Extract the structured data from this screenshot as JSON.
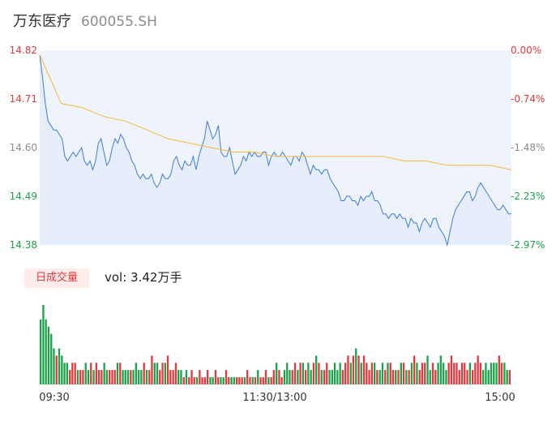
{
  "header": {
    "name": "万东医疗",
    "code": "600055.SH"
  },
  "volume_panel": {
    "tag_label": "日成交量",
    "vol_label": "vol: 3.42万手"
  },
  "colors": {
    "price_line": "#3e7bdb",
    "avg_line": "#f5b93e",
    "up": "#e4393c",
    "down": "#1aa34a",
    "neutral": "#8c8c8c",
    "area_fill": "#eef3fc"
  },
  "chart_data": [
    {
      "type": "line",
      "title": "",
      "x_ticks": [
        "09:30",
        "11:30/13:00",
        "15:00"
      ],
      "y_ticks_left": [
        "14.82",
        "14.71",
        "14.60",
        "14.49",
        "14.38"
      ],
      "y_ticks_right": [
        "0.00%",
        "-0.74%",
        "-1.48%",
        "-2.23%",
        "-2.97%"
      ],
      "ylim": [
        14.38,
        14.82
      ],
      "series": [
        {
          "values": [
            14.81,
            14.76,
            14.7,
            14.66,
            14.65,
            14.64,
            14.64,
            14.63,
            14.62,
            14.58,
            14.57,
            14.58,
            14.59,
            14.58,
            14.59,
            14.6,
            14.57,
            14.56,
            14.57,
            14.55,
            14.57,
            14.61,
            14.62,
            14.59,
            14.56,
            14.57,
            14.6,
            14.62,
            14.61,
            14.63,
            14.62,
            14.6,
            14.59,
            14.57,
            14.56,
            14.54,
            14.53,
            14.54,
            14.53,
            14.53,
            14.54,
            14.52,
            14.51,
            14.52,
            14.54,
            14.53,
            14.53,
            14.54,
            14.57,
            14.58,
            14.56,
            14.55,
            14.57,
            14.56,
            14.56,
            14.58,
            14.55,
            14.58,
            14.6,
            14.62,
            14.66,
            14.64,
            14.62,
            14.63,
            14.65,
            14.59,
            14.58,
            14.58,
            14.6,
            14.57,
            14.54,
            14.55,
            14.56,
            14.58,
            14.57,
            14.59,
            14.58,
            14.59,
            14.58,
            14.58,
            14.59,
            14.59,
            14.56,
            14.58,
            14.59,
            14.58,
            14.58,
            14.59,
            14.58,
            14.57,
            14.56,
            14.58,
            14.58,
            14.57,
            14.59,
            14.58,
            14.56,
            14.54,
            14.56,
            14.55,
            14.55,
            14.54,
            14.55,
            14.55,
            14.53,
            14.52,
            14.51,
            14.5,
            14.48,
            14.48,
            14.49,
            14.49,
            14.48,
            14.48,
            14.47,
            14.49,
            14.48,
            14.49,
            14.49,
            14.5,
            14.48,
            14.48,
            14.47,
            14.45,
            14.45,
            14.44,
            14.45,
            14.45,
            14.44,
            14.45,
            14.44,
            14.44,
            14.42,
            14.44,
            14.43,
            14.43,
            14.41,
            14.43,
            14.44,
            14.43,
            14.42,
            14.44,
            14.44,
            14.42,
            14.41,
            14.4,
            14.38,
            14.41,
            14.44,
            14.46,
            14.47,
            14.48,
            14.49,
            14.5,
            14.5,
            14.48,
            14.49,
            14.51,
            14.52,
            14.51,
            14.5,
            14.49,
            14.48,
            14.47,
            14.46,
            14.46,
            14.47,
            14.46,
            14.45,
            14.45
          ],
          "avg": [
            14.81,
            14.7,
            14.69,
            14.67,
            14.66,
            14.64,
            14.62,
            14.61,
            14.6,
            14.59,
            14.59,
            14.58,
            14.58,
            14.58,
            14.58,
            14.58,
            14.58,
            14.57,
            14.57,
            14.56,
            14.56,
            14.56,
            14.55
          ]
        }
      ]
    },
    {
      "type": "bar",
      "title": "",
      "ylabel": "vol",
      "values": [
        9,
        11,
        9,
        8,
        7,
        5,
        4,
        5,
        4,
        3,
        3,
        2,
        3,
        3,
        2,
        2,
        2,
        3,
        2,
        3,
        2,
        3,
        2,
        2,
        3,
        2,
        2,
        2,
        2,
        3,
        3,
        2,
        2,
        2,
        2,
        2,
        3,
        2,
        2,
        3,
        2,
        2,
        4,
        3,
        3,
        2,
        3,
        3,
        4,
        2,
        2,
        3,
        2,
        2,
        1,
        2,
        1,
        2,
        1,
        1,
        2,
        1,
        1,
        2,
        1,
        1,
        2,
        1,
        1,
        1,
        2,
        1,
        1,
        1,
        1,
        1,
        1,
        1,
        2,
        1,
        1,
        1,
        2,
        1,
        1,
        2,
        1,
        1,
        2,
        3,
        2,
        1,
        2,
        3,
        2,
        2,
        3,
        2,
        3,
        3,
        2,
        3,
        2,
        3,
        4,
        3,
        2,
        2,
        3,
        2,
        2,
        3,
        2,
        3,
        2,
        3,
        4,
        3,
        4,
        5,
        4,
        3,
        4,
        3,
        2,
        3,
        3,
        2,
        2,
        3,
        2,
        3,
        3,
        2,
        2,
        2,
        3,
        3,
        2,
        2,
        3,
        4,
        3,
        2,
        3,
        3,
        4,
        2,
        3,
        2,
        3,
        4,
        3,
        2,
        3,
        4,
        3,
        3,
        2,
        3,
        3,
        2,
        3,
        2,
        3,
        4,
        3,
        2,
        3,
        2,
        3,
        3,
        3,
        4,
        3,
        3,
        2,
        2
      ]
    }
  ]
}
